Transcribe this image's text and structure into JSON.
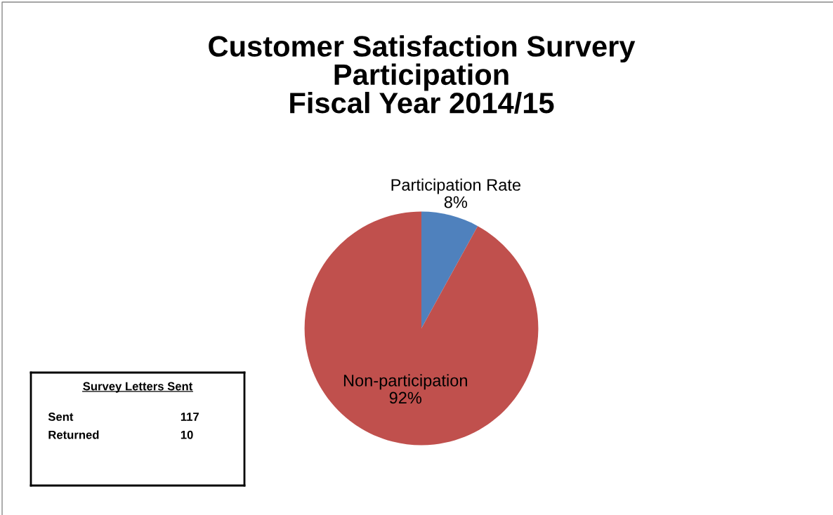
{
  "chart_data": [
    {
      "type": "pie",
      "title": "Customer Satisfaction Survery\nParticipation\nFiscal Year 2014/15",
      "categories": [
        "Participation Rate",
        "Non-participation"
      ],
      "values": [
        8,
        92
      ],
      "value_labels": [
        "8%",
        "92%"
      ],
      "colors": [
        "#4f81bd",
        "#c0504d"
      ],
      "legend": false
    },
    {
      "type": "other",
      "title": "Survey Letters Sent",
      "categories": [
        "Sent",
        "Returned"
      ],
      "value_labels": [
        "117",
        "10"
      ]
    }
  ]
}
